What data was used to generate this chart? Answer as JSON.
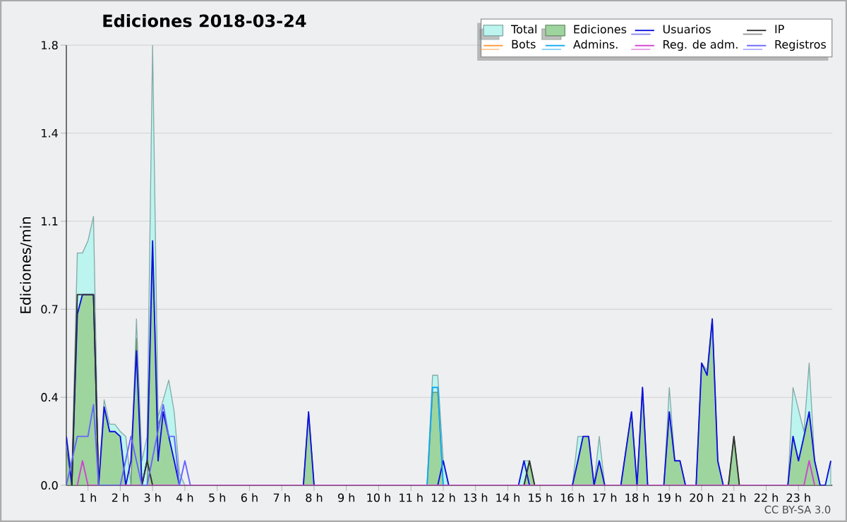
{
  "chart_data": {
    "type": "line",
    "title": "Ediciones  2018-03-24",
    "ylabel": "Ediciones/min",
    "annotations": [
      "CC BY-SA 3.0"
    ],
    "xlim": [
      0.33,
      24.05
    ],
    "ylim": [
      0,
      1.8
    ],
    "xticks": [
      {
        "value": 1,
        "label": "1 h"
      },
      {
        "value": 2,
        "label": "2 h"
      },
      {
        "value": 3,
        "label": "3 h"
      },
      {
        "value": 4,
        "label": "4 h"
      },
      {
        "value": 5,
        "label": "5 h"
      },
      {
        "value": 6,
        "label": "6 h"
      },
      {
        "value": 7,
        "label": "7 h"
      },
      {
        "value": 8,
        "label": "8 h"
      },
      {
        "value": 9,
        "label": "9 h"
      },
      {
        "value": 10,
        "label": "10 h"
      },
      {
        "value": 11,
        "label": "11 h"
      },
      {
        "value": 12,
        "label": "12 h"
      },
      {
        "value": 13,
        "label": "13 h"
      },
      {
        "value": 14,
        "label": "14 h"
      },
      {
        "value": 15,
        "label": "15 h"
      },
      {
        "value": 16,
        "label": "16 h"
      },
      {
        "value": 17,
        "label": "17 h"
      },
      {
        "value": 18,
        "label": "18 h"
      },
      {
        "value": 19,
        "label": "19 h"
      },
      {
        "value": 20,
        "label": "20 h"
      },
      {
        "value": 21,
        "label": "21 h"
      },
      {
        "value": 22,
        "label": "22 h"
      },
      {
        "value": 23,
        "label": "23 h"
      }
    ],
    "yticks": [
      {
        "value": 0,
        "label": "0.0"
      },
      {
        "value": 0.36,
        "label": "0.4"
      },
      {
        "value": 0.72,
        "label": "0.7"
      },
      {
        "value": 1.08,
        "label": "1.1"
      },
      {
        "value": 1.44,
        "label": "1.4"
      },
      {
        "value": 1.8,
        "label": "1.8"
      }
    ],
    "grid": "y",
    "legend": "top right",
    "marker": "none",
    "line_style": "solid",
    "series": [
      {
        "name": "Total",
        "type": "area",
        "color": "#bcf4ef",
        "x": [
          0.33,
          0.5,
          0.67,
          0.83,
          1.0,
          1.17,
          1.33,
          1.5,
          1.67,
          1.83,
          2.0,
          2.17,
          2.33,
          2.5,
          2.67,
          2.83,
          3.0,
          3.17,
          3.33,
          3.5,
          3.67,
          3.83,
          4.0,
          7.67,
          7.83,
          8.0,
          11.5,
          11.67,
          11.83,
          12.0,
          12.17,
          12.33,
          14.33,
          14.5,
          14.67,
          14.83,
          16.0,
          16.17,
          16.33,
          16.5,
          16.67,
          16.83,
          17.0,
          17.5,
          17.83,
          18.0,
          18.17,
          18.33,
          18.83,
          19.0,
          19.17,
          19.33,
          19.5,
          19.83,
          20.0,
          20.17,
          20.33,
          20.5,
          20.67,
          20.83,
          21.0,
          21.17,
          22.67,
          22.83,
          23.0,
          23.17,
          23.33,
          23.5,
          23.67,
          23.83,
          24.0
        ],
        "values": [
          0.2,
          0.05,
          0.95,
          0.95,
          1.0,
          1.1,
          0,
          0.35,
          0.25,
          0.25,
          0.22,
          0.2,
          0,
          0.68,
          0.1,
          0.2,
          1.8,
          0.28,
          0.35,
          0.43,
          0.3,
          0.05,
          0,
          0,
          0.3,
          0,
          0,
          0.45,
          0.45,
          0.1,
          0,
          0,
          0,
          0.1,
          0.1,
          0,
          0,
          0.2,
          0.2,
          0.2,
          0,
          0.2,
          0,
          0,
          0.3,
          0,
          0.4,
          0,
          0,
          0.4,
          0.1,
          0.1,
          0,
          0,
          0.5,
          0.47,
          0.68,
          0.1,
          0,
          0,
          0.2,
          0,
          0,
          0.4,
          null,
          0.22,
          0.5,
          0.1,
          0,
          0,
          0.1
        ]
      },
      {
        "name": "Ediciones",
        "type": "area",
        "color": "#9ed49e",
        "x": [
          0.33,
          0.5,
          0.67,
          0.83,
          1.0,
          1.17,
          1.33,
          1.5,
          1.67,
          1.83,
          2.0,
          2.17,
          2.33,
          2.5,
          2.67,
          2.83,
          3.0,
          3.17,
          3.33,
          3.5,
          3.67,
          3.83,
          7.67,
          7.83,
          8.0,
          11.5,
          11.67,
          11.83,
          12.0,
          14.5,
          14.67,
          14.83,
          16.0,
          16.33,
          16.5,
          16.67,
          16.83,
          17.0,
          17.5,
          17.83,
          18.0,
          18.17,
          18.33,
          18.83,
          19.0,
          19.17,
          19.33,
          19.5,
          19.83,
          20.0,
          20.17,
          20.33,
          20.5,
          20.67,
          20.83,
          21.0,
          21.17,
          22.67,
          22.83,
          23.0,
          23.17,
          23.33,
          23.5,
          23.67
        ],
        "values": [
          0.15,
          0,
          0.7,
          0.78,
          0.78,
          0.78,
          0,
          0.32,
          0.22,
          0.22,
          0.2,
          0,
          0,
          0.6,
          0,
          0,
          0.95,
          0.25,
          0.3,
          0.2,
          0.1,
          0,
          0,
          0.3,
          0,
          0,
          0.38,
          0.38,
          0,
          0,
          0.1,
          0,
          0,
          0.2,
          0.2,
          0,
          0.1,
          0,
          0,
          0.3,
          0,
          0.4,
          0,
          0,
          0.3,
          0.1,
          0.1,
          0,
          0,
          0.5,
          0.45,
          0.68,
          0.1,
          0,
          0,
          0.2,
          0,
          0,
          0.2,
          0.1,
          0.2,
          0.3,
          0.1,
          0
        ]
      },
      {
        "name": "Usuarios",
        "color": "#1010e0",
        "x": [
          0.33,
          0.5,
          0.67,
          0.83,
          1.0,
          1.17,
          1.33,
          1.5,
          1.67,
          1.83,
          2.0,
          2.17,
          2.33,
          2.5,
          2.67,
          2.83,
          3.0,
          3.17,
          3.33,
          3.5,
          3.67,
          3.83,
          7.67,
          7.83,
          8.0,
          11.83,
          12.0,
          12.17,
          14.33,
          14.5,
          14.67,
          16.0,
          16.17,
          16.33,
          16.5,
          16.67,
          16.83,
          17.0,
          17.5,
          17.83,
          18.0,
          18.17,
          18.33,
          18.83,
          19.0,
          19.17,
          19.33,
          19.5,
          19.83,
          20.0,
          20.17,
          20.33,
          20.5,
          20.67,
          22.67,
          22.83,
          23.0,
          23.17,
          23.33,
          23.5,
          23.67,
          23.83,
          24.0
        ],
        "values": [
          0.2,
          0,
          0.7,
          0.78,
          0.78,
          0.78,
          0,
          0.32,
          0.22,
          0.22,
          0.2,
          0,
          0.1,
          0.55,
          0,
          0.1,
          1.0,
          0.1,
          0.3,
          0.2,
          0.1,
          0,
          0,
          0.3,
          0,
          0,
          0.1,
          0,
          0,
          0.1,
          0,
          0,
          0.1,
          0.2,
          0.2,
          0,
          0.1,
          0,
          0,
          0.3,
          0,
          0.4,
          0,
          0,
          0.3,
          0.1,
          0.1,
          0,
          0,
          0.5,
          0.45,
          0.68,
          0.1,
          0,
          0,
          0.2,
          0.1,
          0.2,
          0.3,
          0.1,
          0,
          0,
          0.1
        ]
      },
      {
        "name": "IP",
        "color": "#303030",
        "x": [
          0.5,
          0.67,
          1.17,
          1.33,
          2.67,
          2.83,
          3.0,
          14.5,
          14.67,
          14.83,
          20.83,
          21.0,
          21.17
        ],
        "values": [
          0,
          0.78,
          0.78,
          0,
          0,
          0.1,
          0,
          0,
          0.1,
          0,
          0,
          0.2,
          0
        ]
      },
      {
        "name": "Bots",
        "color": "#ff9933"
      },
      {
        "name": "Admins.",
        "color": "#10a8f0",
        "x": [
          11.5,
          11.67,
          11.83,
          12.0
        ],
        "values": [
          0,
          0.4,
          0.4,
          0
        ]
      },
      {
        "name": "Reg. de adm.",
        "color": "#d040d0",
        "x": [
          0.67,
          0.83,
          1.0,
          23.17,
          23.33,
          23.5
        ],
        "values": [
          0,
          0.1,
          0,
          0,
          0.1,
          0
        ]
      },
      {
        "name": "Registros",
        "color": "#6464ff",
        "x": [
          0.33,
          0.5,
          0.67,
          0.83,
          1.0,
          1.17,
          1.33,
          2.0,
          2.33,
          2.67,
          2.83,
          3.33,
          3.5,
          3.67,
          3.83,
          4.0,
          4.17
        ],
        "values": [
          0,
          0.1,
          0.2,
          0.2,
          0.2,
          0.33,
          0,
          0,
          0.2,
          0,
          0,
          0.33,
          0.2,
          0.2,
          0,
          0.1,
          0
        ]
      }
    ]
  }
}
